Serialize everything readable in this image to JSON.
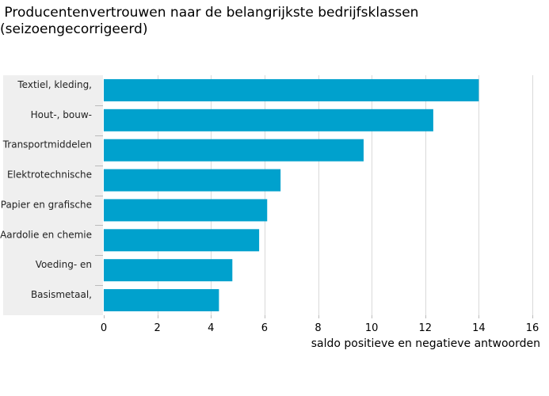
{
  "chart_data": {
    "type": "bar",
    "orientation": "horizontal",
    "title": " Producentenvertrouwen naar de belangrijkste bedrijfsklassen\n(seizoengecorrigeerd)",
    "xlabel": "saldo positieve en negatieve antwoorden",
    "ylabel": "",
    "categories": [
      "Textiel, kleding,",
      "Hout-, bouw-",
      "Transportmiddelen",
      "Elektrotechnische",
      "Papier en grafische",
      "Aardolie en chemie",
      "Voeding- en",
      "Basismetaal,"
    ],
    "values": [
      14.0,
      12.3,
      9.7,
      6.6,
      6.1,
      5.8,
      4.8,
      4.3
    ],
    "xlim": [
      0,
      16
    ],
    "ticks": [
      "0",
      "2",
      "4",
      "6",
      "8",
      "10",
      "12",
      "14",
      "16"
    ],
    "grid": true,
    "bar_color": "#00a1cd",
    "label_panel_color": "#efefef",
    "grid_color": "#d9d9d9"
  }
}
